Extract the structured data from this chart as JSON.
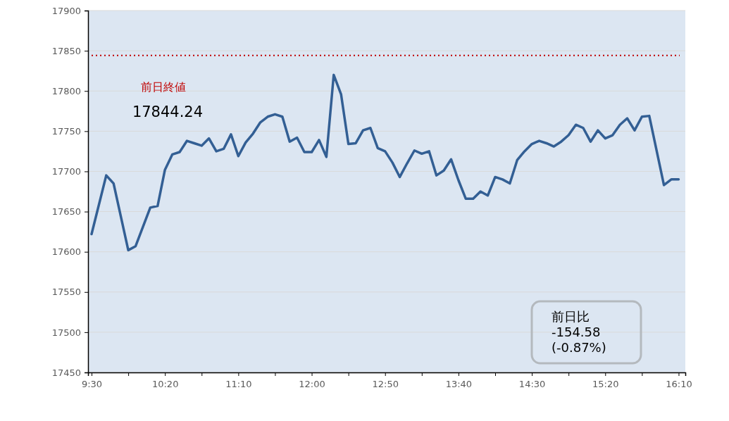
{
  "chart_data": {
    "type": "line",
    "x": [
      9.5,
      9.6667,
      9.75,
      9.9167,
      10,
      10.1667,
      10.25,
      10.3333,
      10.4167,
      10.5,
      10.5833,
      10.6667,
      10.75,
      10.8333,
      10.9167,
      11,
      11.0833,
      11.1667,
      11.25,
      11.3333,
      11.4167,
      11.5,
      11.5833,
      11.6667,
      11.75,
      11.8333,
      11.9167,
      12,
      12.0833,
      12.1667,
      12.25,
      12.3333,
      12.4167,
      12.5,
      12.5833,
      12.6667,
      12.75,
      12.8333,
      12.9167,
      13,
      13.0833,
      13.1667,
      13.25,
      13.3333,
      13.4167,
      13.5,
      13.5833,
      13.6667,
      13.75,
      13.8333,
      13.9167,
      14,
      14.0833,
      14.1667,
      14.25,
      14.3333,
      14.4167,
      14.5,
      14.5833,
      14.6667,
      14.75,
      14.8333,
      14.9167,
      15,
      15.0833,
      15.1667,
      15.25,
      15.3333,
      15.4167,
      15.5,
      15.5833,
      15.6667,
      15.75,
      15.8333,
      16,
      16.0833,
      16.1667
    ],
    "series": [
      {
        "color": "#335f94",
        "values": [
          17622,
          17695,
          17685,
          17602,
          17607,
          17655,
          17657,
          17702,
          17721,
          17724,
          17738,
          17735,
          17732,
          17741,
          17725,
          17728,
          17746,
          17719,
          17736,
          17747,
          17761,
          17768,
          17771,
          17768,
          17737,
          17742,
          17724,
          17724,
          17739,
          17718,
          17820,
          17796,
          17734,
          17735,
          17751,
          17754,
          17729,
          17725,
          17711,
          17693,
          17710,
          17726,
          17722,
          17725,
          17695,
          17701,
          17715,
          17689,
          17666,
          17666,
          17675,
          17670,
          17693,
          17690,
          17685,
          17714,
          17725,
          17734,
          17738,
          17735,
          17731,
          17737,
          17745,
          17758,
          17754,
          17737,
          17751,
          17741,
          17745,
          17758,
          17766,
          17751,
          17768,
          17769,
          17683,
          17690,
          17690
        ]
      }
    ],
    "xlim": [
      9.46,
      16.243
    ],
    "xticks": [
      {
        "value": 9.5,
        "label": "9:30"
      },
      {
        "value": 9.9167,
        "label": null
      },
      {
        "value": 10.3333,
        "label": "10:20"
      },
      {
        "value": 10.75,
        "label": null
      },
      {
        "value": 11.1667,
        "label": "11:10"
      },
      {
        "value": 11.5833,
        "label": null
      },
      {
        "value": 12,
        "label": "12:00"
      },
      {
        "value": 12.4167,
        "label": null
      },
      {
        "value": 12.8333,
        "label": "12:50"
      },
      {
        "value": 13.25,
        "label": null
      },
      {
        "value": 13.6667,
        "label": "13:40"
      },
      {
        "value": 14.0833,
        "label": null
      },
      {
        "value": 14.5,
        "label": "14:30"
      },
      {
        "value": 14.9167,
        "label": null
      },
      {
        "value": 15.3333,
        "label": "15:20"
      },
      {
        "value": 15.75,
        "label": null
      },
      {
        "value": 16.1667,
        "label": "16:10"
      }
    ],
    "ylim": [
      17450,
      17900
    ],
    "yticks": [
      17450,
      17500,
      17550,
      17600,
      17650,
      17700,
      17750,
      17800,
      17850,
      17900
    ],
    "grid": "y",
    "line_style": "solid",
    "marker": "none",
    "ref_lines": [
      {
        "axis": "y",
        "value": 17844.24,
        "label": "前日終値",
        "color": "#c00000",
        "line_style": "dotted"
      }
    ],
    "annotations": [
      "17844.24",
      "前日比\n-154.58\n(-0.87%)"
    ]
  }
}
